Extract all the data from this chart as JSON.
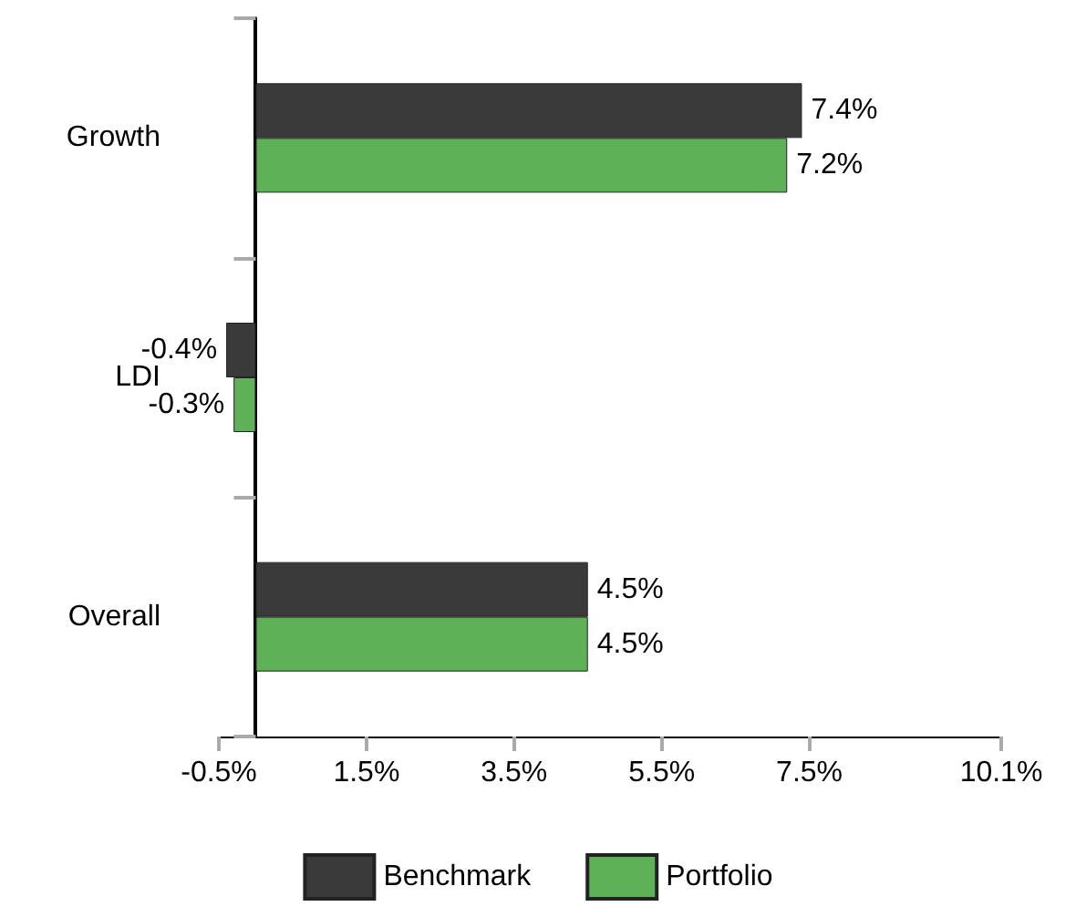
{
  "chart_data": {
    "type": "bar",
    "orientation": "horizontal",
    "categories": [
      "Growth",
      "LDI",
      "Overall"
    ],
    "series": [
      {
        "name": "Benchmark",
        "color": "#3a3a3a",
        "values": [
          7.4,
          -0.4,
          4.5
        ],
        "value_labels": [
          "7.4%",
          "-0.4%",
          "4.5%"
        ]
      },
      {
        "name": "Portfolio",
        "color": "#5fb157",
        "values": [
          7.2,
          -0.3,
          4.5
        ],
        "value_labels": [
          "7.2%",
          "-0.3%",
          "4.5%"
        ]
      }
    ],
    "xlim": [
      -0.5,
      10.1
    ],
    "xticks": [
      {
        "value": -0.5,
        "label": "-0.5%"
      },
      {
        "value": 1.5,
        "label": "1.5%"
      },
      {
        "value": 3.5,
        "label": "3.5%"
      },
      {
        "value": 5.5,
        "label": "5.5%"
      },
      {
        "value": 7.5,
        "label": "7.5%"
      },
      {
        "value": 10.1,
        "label": "10.1%"
      }
    ],
    "grid": false,
    "legend": "bottom"
  }
}
